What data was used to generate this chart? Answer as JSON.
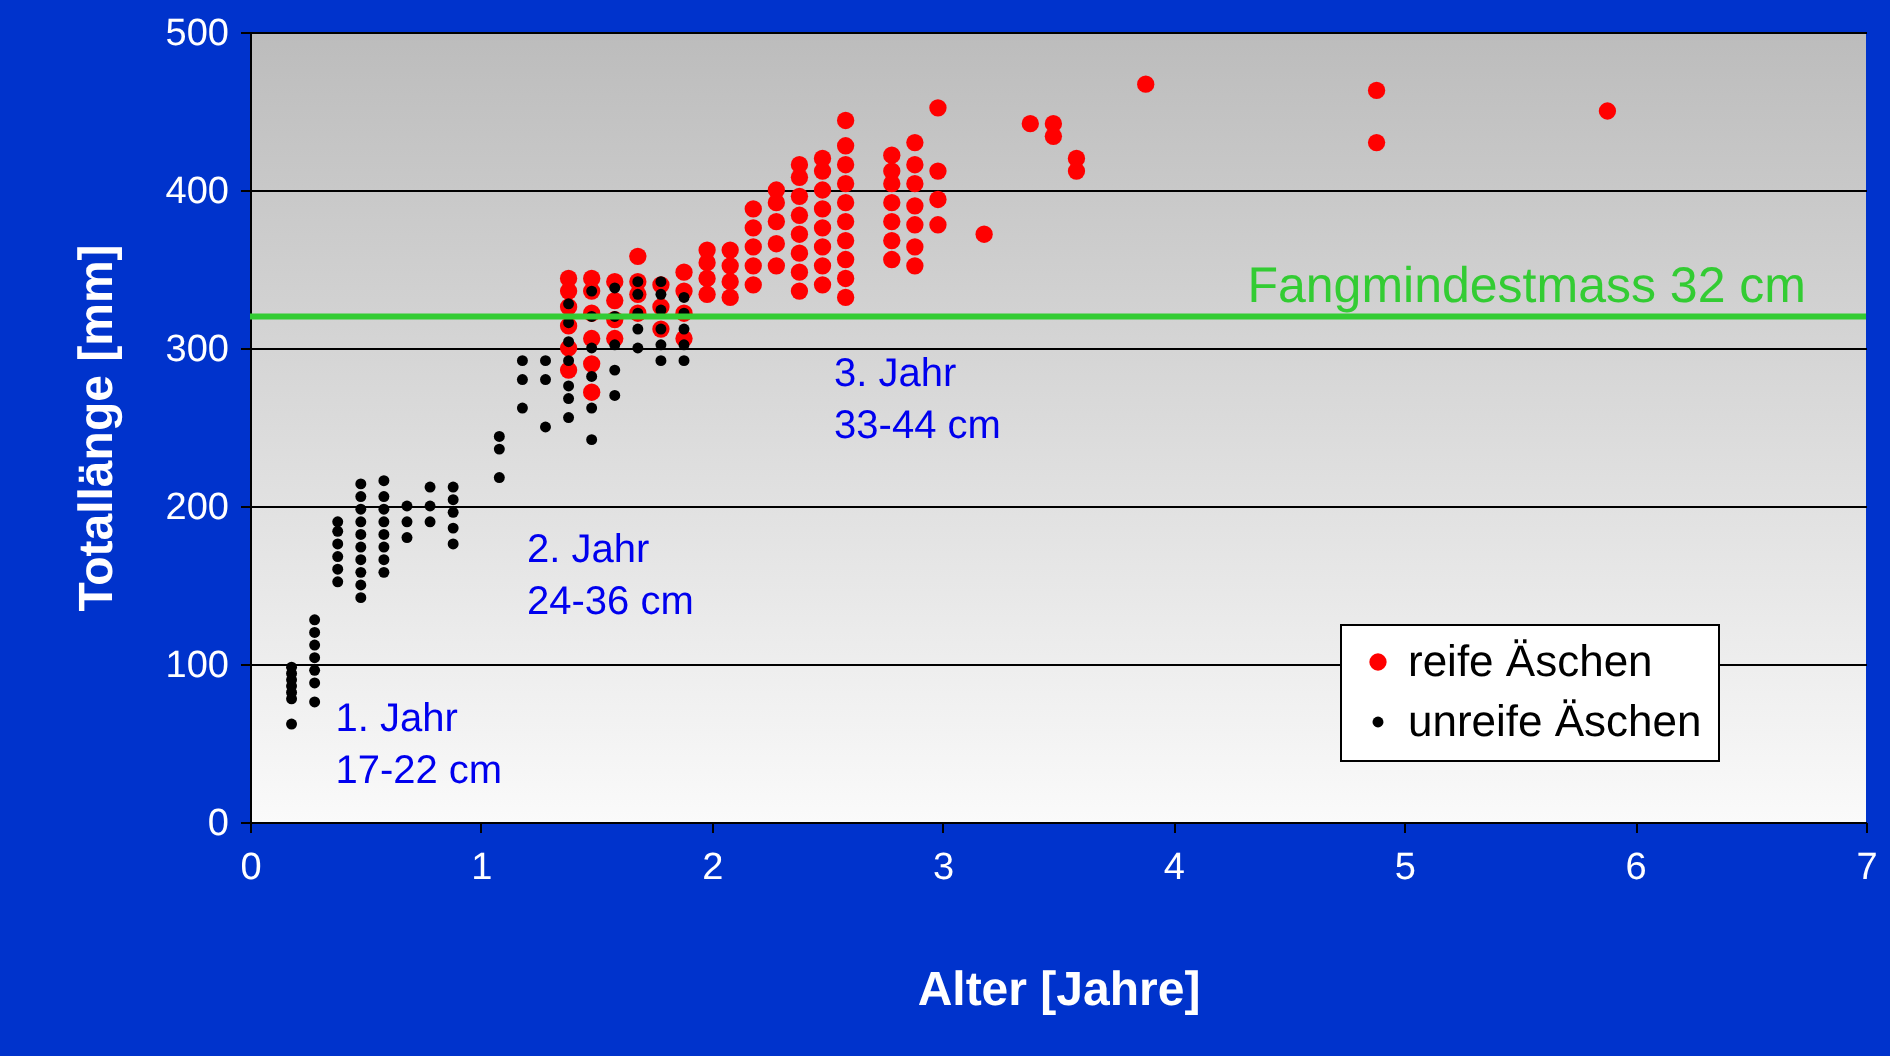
{
  "chart_data": {
    "type": "scatter",
    "xlabel": "Alter [Jahre]",
    "ylabel": "Totallänge [mm]",
    "xlim": [
      0,
      7
    ],
    "xticks": [
      0,
      1,
      2,
      3,
      4,
      5,
      6,
      7
    ],
    "ylim": [
      0,
      500
    ],
    "yticks": [
      0,
      100,
      200,
      300,
      400,
      500
    ],
    "grid": "y",
    "legend": "bottom right",
    "marker": "circle",
    "series": [
      {
        "name": "reife Äschen",
        "color": "#ff0000",
        "x": [
          1.38,
          1.38,
          1.38,
          1.38,
          1.38,
          1.38,
          1.48,
          1.48,
          1.48,
          1.48,
          1.48,
          1.48,
          1.58,
          1.58,
          1.58,
          1.58,
          1.68,
          1.68,
          1.68,
          1.68,
          1.78,
          1.78,
          1.78,
          1.88,
          1.88,
          1.88,
          1.88,
          1.98,
          1.98,
          1.98,
          1.98,
          2.08,
          2.08,
          2.08,
          2.08,
          2.18,
          2.18,
          2.18,
          2.18,
          2.18,
          2.28,
          2.28,
          2.28,
          2.28,
          2.28,
          2.38,
          2.38,
          2.38,
          2.38,
          2.38,
          2.38,
          2.38,
          2.38,
          2.48,
          2.48,
          2.48,
          2.48,
          2.48,
          2.48,
          2.48,
          2.48,
          2.58,
          2.58,
          2.58,
          2.58,
          2.58,
          2.58,
          2.58,
          2.58,
          2.58,
          2.58,
          2.78,
          2.78,
          2.78,
          2.78,
          2.78,
          2.78,
          2.78,
          2.88,
          2.88,
          2.88,
          2.88,
          2.88,
          2.88,
          2.88,
          2.98,
          2.98,
          2.98,
          2.98,
          3.18,
          3.38,
          3.48,
          3.48,
          3.58,
          3.58,
          3.88,
          4.88,
          4.88,
          5.88
        ],
        "values": [
          286,
          300,
          314,
          326,
          336,
          344,
          272,
          290,
          306,
          322,
          336,
          344,
          306,
          318,
          330,
          342,
          358,
          322,
          334,
          342,
          312,
          326,
          340,
          306,
          322,
          336,
          348,
          334,
          344,
          354,
          362,
          332,
          342,
          352,
          362,
          340,
          352,
          364,
          376,
          388,
          352,
          366,
          380,
          392,
          400,
          336,
          348,
          360,
          372,
          384,
          396,
          408,
          416,
          340,
          352,
          364,
          376,
          388,
          400,
          412,
          420,
          332,
          344,
          356,
          368,
          380,
          392,
          404,
          416,
          428,
          444,
          356,
          368,
          380,
          392,
          404,
          412,
          422,
          352,
          364,
          378,
          390,
          404,
          416,
          430,
          378,
          394,
          412,
          452,
          372,
          442,
          442,
          434,
          420,
          412,
          467,
          463,
          430,
          450
        ]
      },
      {
        "name": "unreife Äschen",
        "color": "#000000",
        "x": [
          0.18,
          0.18,
          0.18,
          0.18,
          0.18,
          0.18,
          0.18,
          0.28,
          0.28,
          0.28,
          0.28,
          0.28,
          0.28,
          0.28,
          0.38,
          0.38,
          0.38,
          0.38,
          0.38,
          0.38,
          0.48,
          0.48,
          0.48,
          0.48,
          0.48,
          0.48,
          0.48,
          0.48,
          0.48,
          0.48,
          0.58,
          0.58,
          0.58,
          0.58,
          0.58,
          0.58,
          0.58,
          0.58,
          0.68,
          0.68,
          0.68,
          0.78,
          0.78,
          0.78,
          0.88,
          0.88,
          0.88,
          0.88,
          0.88,
          1.08,
          1.08,
          1.08,
          1.18,
          1.18,
          1.18,
          1.28,
          1.28,
          1.28,
          1.38,
          1.38,
          1.38,
          1.38,
          1.38,
          1.38,
          1.38,
          1.48,
          1.48,
          1.48,
          1.48,
          1.48,
          1.48,
          1.58,
          1.58,
          1.58,
          1.58,
          1.58,
          1.68,
          1.68,
          1.68,
          1.68,
          1.68,
          1.78,
          1.78,
          1.78,
          1.78,
          1.78,
          1.78,
          1.88,
          1.88,
          1.88,
          1.88,
          1.88
        ],
        "values": [
          62,
          78,
          82,
          86,
          90,
          94,
          98,
          76,
          88,
          96,
          104,
          112,
          120,
          128,
          152,
          160,
          168,
          176,
          184,
          190,
          142,
          150,
          158,
          166,
          174,
          182,
          190,
          198,
          206,
          214,
          158,
          166,
          174,
          182,
          190,
          198,
          206,
          216,
          180,
          190,
          200,
          190,
          200,
          212,
          176,
          186,
          196,
          204,
          212,
          218,
          236,
          244,
          262,
          280,
          292,
          250,
          280,
          292,
          256,
          268,
          276,
          292,
          304,
          316,
          328,
          242,
          262,
          282,
          300,
          320,
          336,
          270,
          286,
          302,
          320,
          338,
          300,
          312,
          322,
          334,
          342,
          292,
          302,
          312,
          324,
          334,
          342,
          292,
          302,
          312,
          322,
          332
        ]
      }
    ],
    "ref_lines": [
      {
        "axis": "y",
        "value": 320,
        "label": "Fangmindestmass 32 cm",
        "color": "#33cc33"
      }
    ],
    "annotations": [
      "1. Jahr\n17-22 cm",
      "2. Jahr\n24-36 cm",
      "3. Jahr\n33-44 cm"
    ]
  }
}
